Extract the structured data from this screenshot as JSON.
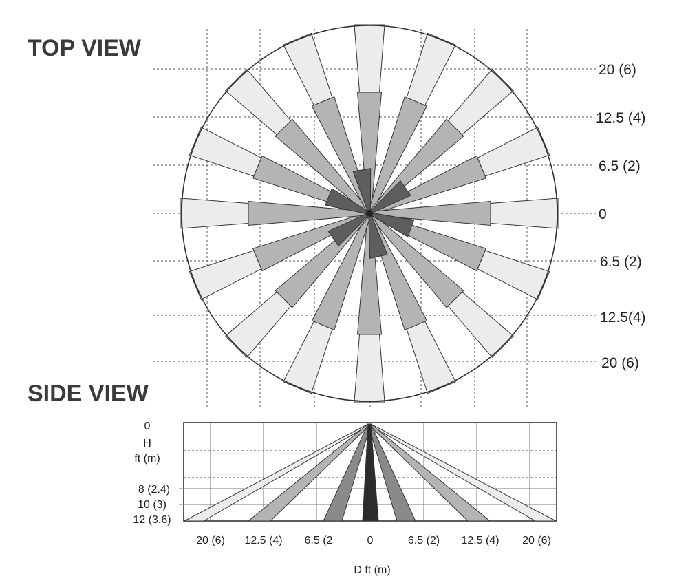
{
  "top_view": {
    "title": "TOP VIEW",
    "row_labels": [
      "20 (6)",
      "12.5 (4)",
      "6.5 (2)",
      "0",
      "6.5 (2)",
      "12.5(4)",
      "20 (6)"
    ],
    "beams": 16,
    "zones": [
      "far",
      "mid",
      "near"
    ]
  },
  "side_view": {
    "title": "SIDE VIEW",
    "h_top": "0",
    "h_label": "H",
    "h_unit": "ft (m)",
    "h_labels": [
      "8 (2.4)",
      "10 (3)",
      "12 (3.6)"
    ],
    "d_labels": [
      "20 (6)",
      "12.5 (4)",
      "6.5 (2",
      "0",
      "6.5 (2)",
      "12.5 (4)",
      "20 (6)"
    ],
    "d_axis_label": "D ft (m)"
  },
  "colors": {
    "far": "#ececec",
    "mid": "#b4b4b4",
    "near": "#5e5e5e",
    "center": "#2c2c2c",
    "outline": "#333333"
  }
}
